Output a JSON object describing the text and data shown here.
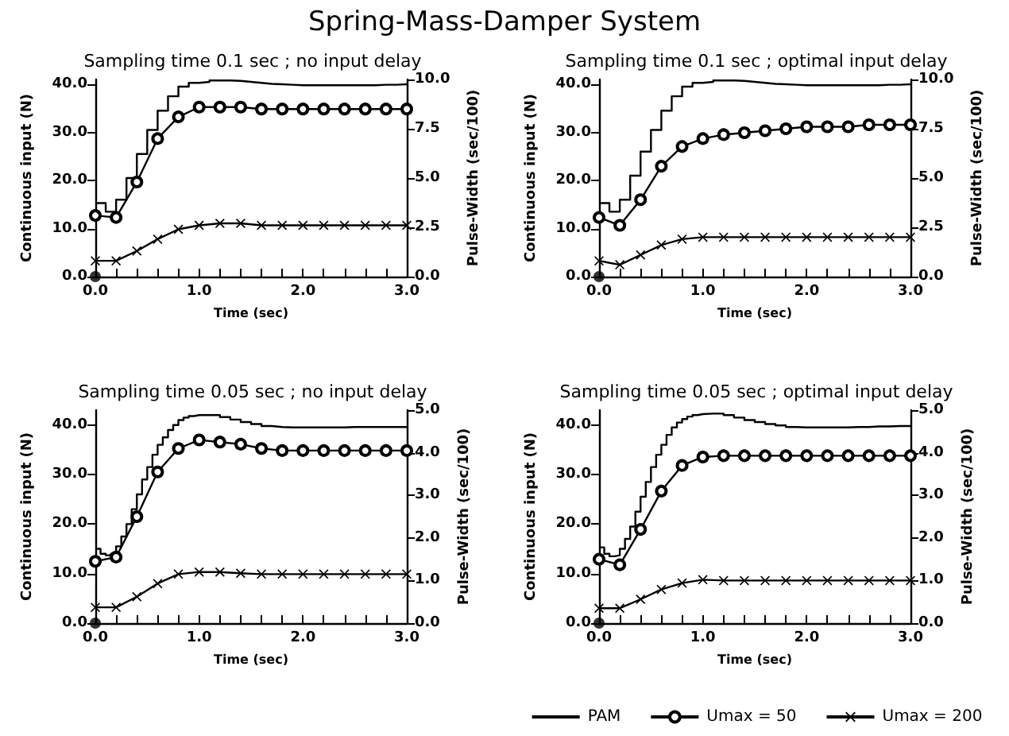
{
  "chart_data": [
    {
      "type": "line",
      "title": "Sampling time 0.1 sec ; no input delay",
      "annotations": [
        "Spring-Mass-Damper System"
      ],
      "xlabel": "Time (sec)",
      "ylabel": "Continuous input (N)",
      "y2label": "Pulse-Width (sec/100)",
      "xlim": [
        0,
        3
      ],
      "xticks": [
        {
          "value": 0,
          "label": "0.0"
        },
        {
          "value": 0.2,
          "label": null
        },
        {
          "value": 0.4,
          "label": null
        },
        {
          "value": 0.6,
          "label": null
        },
        {
          "value": 0.8,
          "label": null
        },
        {
          "value": 1,
          "label": "1.0"
        },
        {
          "value": 1.2,
          "label": null
        },
        {
          "value": 1.4,
          "label": null
        },
        {
          "value": 1.6,
          "label": null
        },
        {
          "value": 1.8,
          "label": null
        },
        {
          "value": 2,
          "label": "2.0"
        },
        {
          "value": 2.2,
          "label": null
        },
        {
          "value": 2.4,
          "label": null
        },
        {
          "value": 2.6,
          "label": null
        },
        {
          "value": 2.8,
          "label": null
        },
        {
          "value": 3,
          "label": "3.0"
        }
      ],
      "ylim": [
        0,
        41
      ],
      "yticks": [
        {
          "value": 0,
          "label": "0.0"
        },
        {
          "value": 10,
          "label": "10.0"
        },
        {
          "value": 20,
          "label": "20.0"
        },
        {
          "value": 30,
          "label": "30.0"
        },
        {
          "value": 40,
          "label": "40.0"
        }
      ],
      "y2lim": [
        0,
        10
      ],
      "y2ticks": [
        {
          "value": 0,
          "label": "0.0"
        },
        {
          "value": 2.5,
          "label": "2.5"
        },
        {
          "value": 5,
          "label": "5.0"
        },
        {
          "value": 7.5,
          "label": "7.5"
        },
        {
          "value": 10,
          "label": "10.0"
        }
      ],
      "series": [
        {
          "type": "step",
          "color": "#000000",
          "marker": "none",
          "x": [
            0,
            0.1,
            0.2,
            0.3,
            0.4,
            0.5,
            0.6,
            0.7,
            0.8,
            0.9,
            1,
            1.1,
            1.2,
            1.3,
            1.4,
            1.5,
            1.6,
            1.7,
            1.8,
            1.9,
            2,
            2.1,
            2.2,
            2.3,
            2.4,
            2.5,
            2.6,
            2.7,
            2.8,
            2.9,
            3
          ],
          "values": [
            15.3,
            13.5,
            16,
            20.5,
            25.5,
            30.5,
            34.5,
            37.5,
            39.5,
            40.3,
            40.5,
            40.8,
            40.8,
            40.7,
            40.5,
            40.3,
            40.1,
            40,
            39.9,
            39.8,
            39.8,
            39.8,
            39.8,
            39.8,
            39.8,
            39.8,
            39.8,
            39.9,
            39.9,
            40,
            40
          ]
        },
        {
          "type": "line",
          "axis": "y2",
          "color": "#000000",
          "marker": "circle",
          "x": [
            0,
            0.2,
            0.4,
            0.6,
            0.8,
            1,
            1.2,
            1.4,
            1.6,
            1.8,
            2,
            2.2,
            2.4,
            2.6,
            2.8,
            3
          ],
          "values": [
            3.1,
            3.0,
            4.8,
            7.0,
            8.1,
            8.6,
            8.6,
            8.6,
            8.5,
            8.5,
            8.5,
            8.5,
            8.5,
            8.5,
            8.5,
            8.5
          ]
        },
        {
          "axis": "y2",
          "color": "#000000",
          "marker": "cross",
          "x": [
            0,
            0.2,
            0.4,
            0.6,
            0.8,
            1,
            1.2,
            1.4,
            1.6,
            1.8,
            2,
            2.2,
            2.4,
            2.6,
            2.8,
            3
          ],
          "values": [
            0.8,
            0.8,
            1.3,
            1.9,
            2.4,
            2.6,
            2.7,
            2.7,
            2.6,
            2.6,
            2.6,
            2.6,
            2.6,
            2.6,
            2.6,
            2.6
          ]
        },
        {
          "type": "scatter",
          "color": "#000000",
          "marker": "circle",
          "x": [
            0
          ],
          "values": [
            0
          ]
        }
      ]
    },
    {
      "type": "line",
      "title": "Sampling time 0.1 sec ; optimal input delay",
      "xlabel": "Time (sec)",
      "ylabel": "Continuous input (N)",
      "y2label": "Pulse-Width (sec/100)",
      "xlim": [
        0,
        3
      ],
      "xticks": [
        {
          "value": 0,
          "label": "0.0"
        },
        {
          "value": 0.2,
          "label": null
        },
        {
          "value": 0.4,
          "label": null
        },
        {
          "value": 0.6,
          "label": null
        },
        {
          "value": 0.8,
          "label": null
        },
        {
          "value": 1,
          "label": "1.0"
        },
        {
          "value": 1.2,
          "label": null
        },
        {
          "value": 1.4,
          "label": null
        },
        {
          "value": 1.6,
          "label": null
        },
        {
          "value": 1.8,
          "label": null
        },
        {
          "value": 2,
          "label": "2.0"
        },
        {
          "value": 2.2,
          "label": null
        },
        {
          "value": 2.4,
          "label": null
        },
        {
          "value": 2.6,
          "label": null
        },
        {
          "value": 2.8,
          "label": null
        },
        {
          "value": 3,
          "label": "3.0"
        }
      ],
      "ylim": [
        0,
        41
      ],
      "yticks": [
        {
          "value": 0,
          "label": "0.0"
        },
        {
          "value": 10,
          "label": "10.0"
        },
        {
          "value": 20,
          "label": "20.0"
        },
        {
          "value": 30,
          "label": "30.0"
        },
        {
          "value": 40,
          "label": "40.0"
        }
      ],
      "y2lim": [
        0,
        10
      ],
      "y2ticks": [
        {
          "value": 0,
          "label": "0.0"
        },
        {
          "value": 2.5,
          "label": "2.5"
        },
        {
          "value": 5,
          "label": "5.0"
        },
        {
          "value": 7.5,
          "label": "7.5"
        },
        {
          "value": 10,
          "label": "10.0"
        }
      ],
      "series": [
        {
          "type": "step",
          "color": "#000000",
          "marker": "none",
          "x": [
            0,
            0.1,
            0.2,
            0.3,
            0.4,
            0.5,
            0.6,
            0.7,
            0.8,
            0.9,
            1,
            1.1,
            1.2,
            1.3,
            1.4,
            1.5,
            1.6,
            1.7,
            1.8,
            1.9,
            2,
            2.1,
            2.2,
            2.3,
            2.4,
            2.5,
            2.6,
            2.7,
            2.8,
            2.9,
            3
          ],
          "values": [
            15.3,
            13.5,
            16,
            21,
            26,
            30.5,
            34.5,
            37.5,
            39.5,
            40.3,
            40.5,
            40.8,
            40.8,
            40.7,
            40.5,
            40.3,
            40.1,
            40,
            39.9,
            39.8,
            39.8,
            39.8,
            39.8,
            39.8,
            39.8,
            39.8,
            39.8,
            39.9,
            39.9,
            40,
            40
          ]
        },
        {
          "type": "line",
          "axis": "y2",
          "color": "#000000",
          "marker": "circle",
          "x": [
            0,
            0.2,
            0.4,
            0.6,
            0.8,
            1,
            1.2,
            1.4,
            1.6,
            1.8,
            2,
            2.2,
            2.4,
            2.6,
            2.8,
            3
          ],
          "values": [
            3.0,
            2.6,
            3.9,
            5.6,
            6.6,
            7.0,
            7.2,
            7.3,
            7.4,
            7.5,
            7.6,
            7.6,
            7.6,
            7.7,
            7.7,
            7.7
          ]
        },
        {
          "axis": "y2",
          "color": "#000000",
          "marker": "cross",
          "x": [
            0,
            0.2,
            0.4,
            0.6,
            0.8,
            1,
            1.2,
            1.4,
            1.6,
            1.8,
            2,
            2.2,
            2.4,
            2.6,
            2.8,
            3
          ],
          "values": [
            0.8,
            0.6,
            1.1,
            1.6,
            1.9,
            2.0,
            2.0,
            2.0,
            2.0,
            2.0,
            2.0,
            2.0,
            2.0,
            2.0,
            2.0,
            2.0
          ]
        },
        {
          "type": "scatter",
          "color": "#000000",
          "marker": "circle",
          "x": [
            0
          ],
          "values": [
            0
          ]
        }
      ]
    },
    {
      "type": "line",
      "title": "Sampling time 0.05 sec ; no input delay",
      "xlabel": "Time (sec)",
      "ylabel": "Continuous input (N)",
      "y2label": "Pulse-Width (sec/100)",
      "xlim": [
        0,
        3
      ],
      "xticks": [
        {
          "value": 0,
          "label": "0.0"
        },
        {
          "value": 0.2,
          "label": null
        },
        {
          "value": 0.4,
          "label": null
        },
        {
          "value": 0.6,
          "label": null
        },
        {
          "value": 0.8,
          "label": null
        },
        {
          "value": 1,
          "label": "1.0"
        },
        {
          "value": 1.2,
          "label": null
        },
        {
          "value": 1.4,
          "label": null
        },
        {
          "value": 1.6,
          "label": null
        },
        {
          "value": 1.8,
          "label": null
        },
        {
          "value": 2,
          "label": "2.0"
        },
        {
          "value": 2.2,
          "label": null
        },
        {
          "value": 2.4,
          "label": null
        },
        {
          "value": 2.6,
          "label": null
        },
        {
          "value": 2.8,
          "label": null
        },
        {
          "value": 3,
          "label": "3.0"
        }
      ],
      "ylim": [
        0,
        43
      ],
      "yticks": [
        {
          "value": 0,
          "label": "0.0"
        },
        {
          "value": 10,
          "label": "10.0"
        },
        {
          "value": 20,
          "label": "20.0"
        },
        {
          "value": 30,
          "label": "30.0"
        },
        {
          "value": 40,
          "label": "40.0"
        }
      ],
      "y2lim": [
        0,
        5
      ],
      "y2ticks": [
        {
          "value": 0,
          "label": "0.0"
        },
        {
          "value": 1,
          "label": "1.0"
        },
        {
          "value": 2,
          "label": "2.0"
        },
        {
          "value": 3,
          "label": "3.0"
        },
        {
          "value": 4,
          "label": "4.0"
        },
        {
          "value": 5,
          "label": "5.0"
        }
      ],
      "series": [
        {
          "type": "step",
          "color": "#000000",
          "marker": "none",
          "x": [
            0,
            0.05,
            0.1,
            0.15,
            0.2,
            0.25,
            0.3,
            0.35,
            0.4,
            0.45,
            0.5,
            0.55,
            0.6,
            0.65,
            0.7,
            0.75,
            0.8,
            0.85,
            0.9,
            0.95,
            1,
            1.1,
            1.2,
            1.3,
            1.4,
            1.5,
            1.6,
            1.7,
            1.8,
            1.9,
            2,
            2.1,
            2.2,
            2.3,
            2.4,
            2.5,
            2.6,
            2.7,
            2.8,
            2.9,
            3
          ],
          "values": [
            15,
            14,
            13.7,
            14,
            15.5,
            17.5,
            20,
            23,
            26,
            29,
            31.5,
            34,
            36,
            37.5,
            39,
            40,
            41,
            41.5,
            41.8,
            42,
            42,
            42,
            41.6,
            41.1,
            40.6,
            40.2,
            39.8,
            39.6,
            39.5,
            39.5,
            39.5,
            39.5,
            39.5,
            39.5,
            39.6,
            39.6,
            39.6,
            39.6,
            39.6,
            39.6,
            39.6
          ]
        },
        {
          "type": "line",
          "axis": "y2",
          "color": "#000000",
          "marker": "circle",
          "x": [
            0,
            0.2,
            0.4,
            0.6,
            0.8,
            1,
            1.2,
            1.4,
            1.6,
            1.8,
            2,
            2.2,
            2.4,
            2.6,
            2.8,
            3
          ],
          "values": [
            1.45,
            1.55,
            2.5,
            3.55,
            4.1,
            4.3,
            4.25,
            4.2,
            4.1,
            4.05,
            4.05,
            4.05,
            4.05,
            4.05,
            4.05,
            4.05
          ]
        },
        {
          "axis": "y2",
          "color": "#000000",
          "marker": "cross",
          "x": [
            0,
            0.2,
            0.4,
            0.6,
            0.8,
            1,
            1.2,
            1.4,
            1.6,
            1.8,
            2,
            2.2,
            2.4,
            2.6,
            2.8,
            3
          ],
          "values": [
            0.37,
            0.37,
            0.62,
            0.93,
            1.15,
            1.2,
            1.2,
            1.17,
            1.15,
            1.15,
            1.15,
            1.15,
            1.15,
            1.15,
            1.15,
            1.15
          ]
        },
        {
          "type": "scatter",
          "color": "#000000",
          "marker": "circle",
          "x": [
            0
          ],
          "values": [
            0
          ]
        }
      ]
    },
    {
      "type": "line",
      "title": "Sampling time 0.05 sec ; optimal input delay",
      "xlabel": "Time (sec)",
      "ylabel": "Continuous input (N)",
      "y2label": "Pulse-Width (sec/100)",
      "legend": "bottom",
      "xlim": [
        0,
        3
      ],
      "xticks": [
        {
          "value": 0,
          "label": "0.0"
        },
        {
          "value": 0.2,
          "label": null
        },
        {
          "value": 0.4,
          "label": null
        },
        {
          "value": 0.6,
          "label": null
        },
        {
          "value": 0.8,
          "label": null
        },
        {
          "value": 1,
          "label": "1.0"
        },
        {
          "value": 1.2,
          "label": null
        },
        {
          "value": 1.4,
          "label": null
        },
        {
          "value": 1.6,
          "label": null
        },
        {
          "value": 1.8,
          "label": null
        },
        {
          "value": 2,
          "label": "2.0"
        },
        {
          "value": 2.2,
          "label": null
        },
        {
          "value": 2.4,
          "label": null
        },
        {
          "value": 2.6,
          "label": null
        },
        {
          "value": 2.8,
          "label": null
        },
        {
          "value": 3,
          "label": "3.0"
        }
      ],
      "ylim": [
        0,
        43
      ],
      "yticks": [
        {
          "value": 0,
          "label": "0.0"
        },
        {
          "value": 10,
          "label": "10.0"
        },
        {
          "value": 20,
          "label": "20.0"
        },
        {
          "value": 30,
          "label": "30.0"
        },
        {
          "value": 40,
          "label": "40.0"
        }
      ],
      "y2lim": [
        0,
        5
      ],
      "y2ticks": [
        {
          "value": 0,
          "label": "0.0"
        },
        {
          "value": 1,
          "label": "1.0"
        },
        {
          "value": 2,
          "label": "2.0"
        },
        {
          "value": 3,
          "label": "3.0"
        },
        {
          "value": 4,
          "label": "4.0"
        },
        {
          "value": 5,
          "label": "5.0"
        }
      ],
      "series": [
        {
          "type": "step",
          "name": "PAM",
          "color": "#000000",
          "marker": "none",
          "x": [
            0,
            0.05,
            0.1,
            0.15,
            0.2,
            0.25,
            0.3,
            0.35,
            0.4,
            0.45,
            0.5,
            0.55,
            0.6,
            0.65,
            0.7,
            0.75,
            0.8,
            0.85,
            0.9,
            0.95,
            1,
            1.1,
            1.2,
            1.3,
            1.4,
            1.5,
            1.6,
            1.7,
            1.8,
            1.9,
            2,
            2.1,
            2.2,
            2.3,
            2.4,
            2.5,
            2.6,
            2.7,
            2.8,
            2.9,
            3
          ],
          "values": [
            15.3,
            14,
            13.5,
            13.7,
            15,
            17,
            19.5,
            22.5,
            25.5,
            28.5,
            31.5,
            34,
            36,
            38,
            39.5,
            40.5,
            41.2,
            41.7,
            42,
            42.2,
            42.3,
            42.3,
            42,
            41.5,
            41,
            40.6,
            40.2,
            39.9,
            39.6,
            39.5,
            39.5,
            39.5,
            39.5,
            39.5,
            39.6,
            39.6,
            39.7,
            39.7,
            39.8,
            39.8,
            39.8
          ]
        },
        {
          "type": "line",
          "name": "Umax = 50",
          "axis": "y2",
          "color": "#000000",
          "marker": "circle",
          "x": [
            0,
            0.2,
            0.4,
            0.6,
            0.8,
            1,
            1.2,
            1.4,
            1.6,
            1.8,
            2,
            2.2,
            2.4,
            2.6,
            2.8,
            3
          ],
          "values": [
            1.5,
            1.37,
            2.2,
            3.1,
            3.7,
            3.9,
            3.93,
            3.93,
            3.93,
            3.93,
            3.93,
            3.93,
            3.93,
            3.93,
            3.93,
            3.93
          ]
        },
        {
          "name": "Umax = 200",
          "axis": "y2",
          "color": "#000000",
          "marker": "cross",
          "x": [
            0,
            0.2,
            0.4,
            0.6,
            0.8,
            1,
            1.2,
            1.4,
            1.6,
            1.8,
            2,
            2.2,
            2.4,
            2.6,
            2.8,
            3
          ],
          "values": [
            0.35,
            0.35,
            0.56,
            0.79,
            0.94,
            1.02,
            1.0,
            1.0,
            1.0,
            1.0,
            1.0,
            1.0,
            1.0,
            1.0,
            1.0,
            1.0
          ]
        },
        {
          "type": "scatter",
          "color": "#000000",
          "marker": "circle",
          "x": [
            0
          ],
          "values": [
            0
          ]
        }
      ]
    }
  ]
}
